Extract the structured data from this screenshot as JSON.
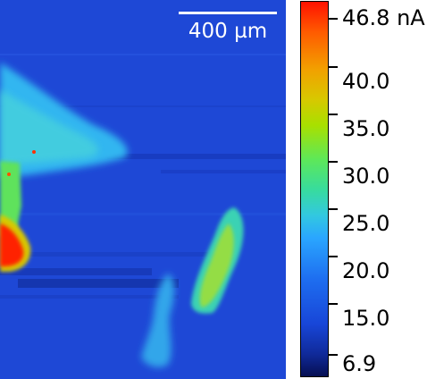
{
  "scale_bar": {
    "label": "400 µm"
  },
  "colorbar": {
    "max_label": "46.8 nA",
    "min_label": "6.9",
    "ticks": [
      "40.0",
      "35.0",
      "30.0",
      "25.0",
      "20.0",
      "15.0"
    ],
    "colors": [
      "#ff1200",
      "#f2a000",
      "#a8e000",
      "#38dc9c",
      "#2aa6ff",
      "#1846d8",
      "#060f52"
    ]
  }
}
